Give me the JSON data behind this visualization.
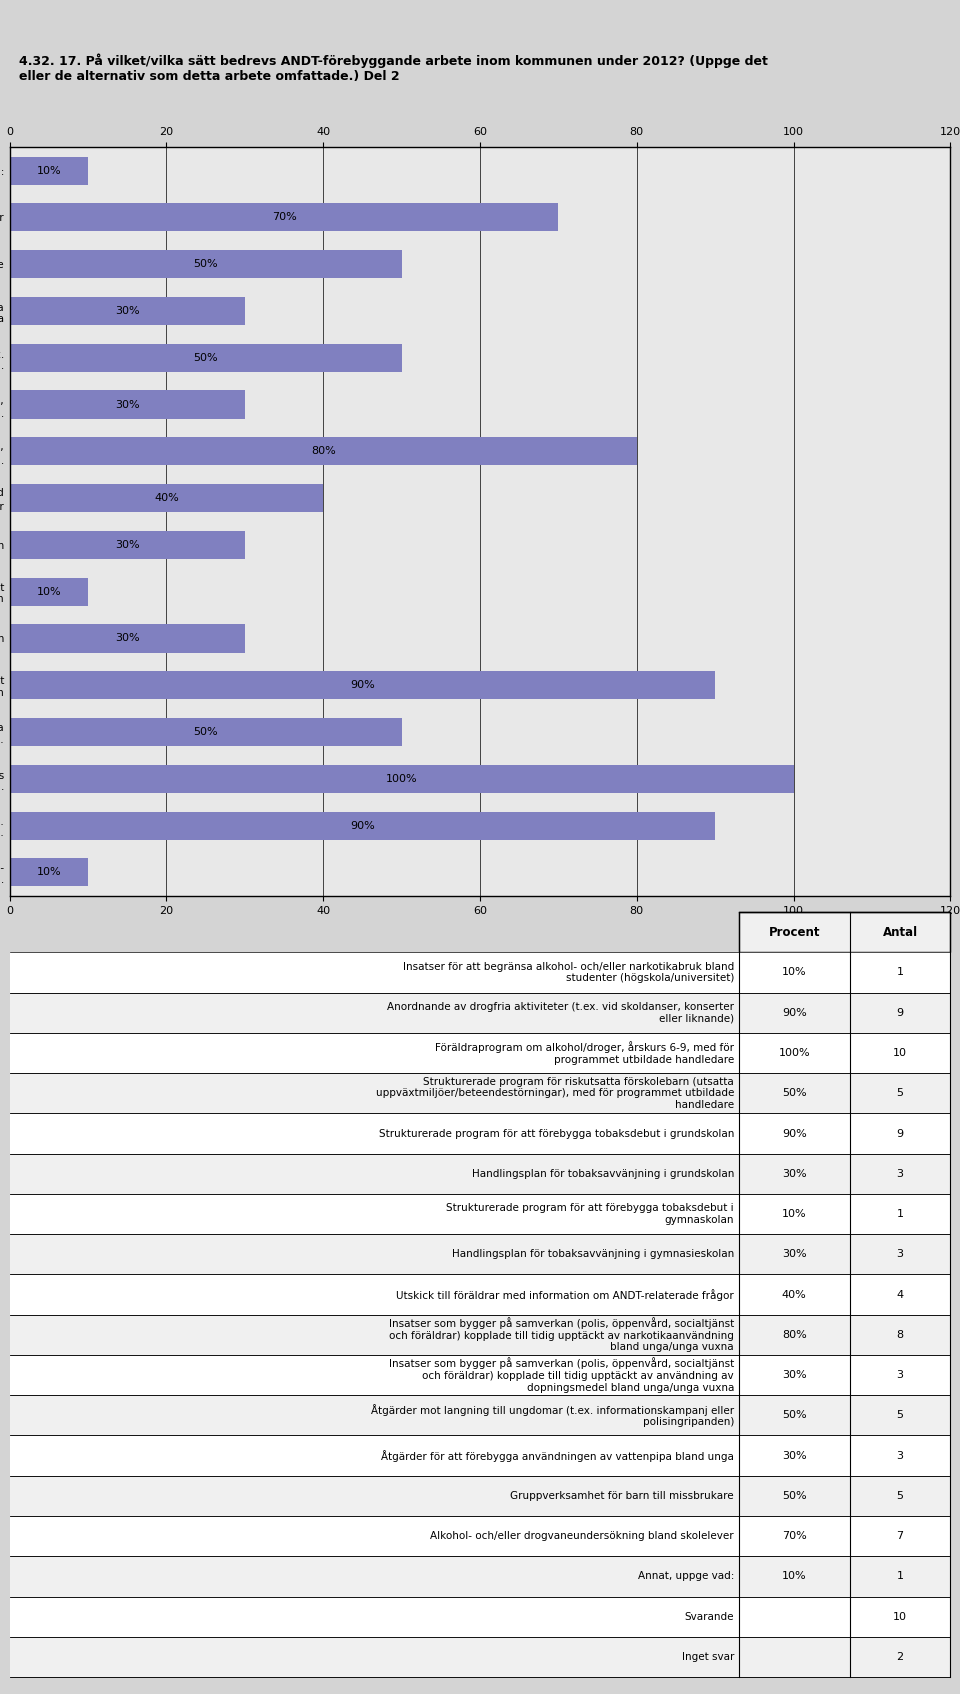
{
  "title": "4.32. 17. På vilket/vilka sätt bedrevs ANDT-förebyggande arbete inom kommunen under 2012? (Uppge det\neller de alternativ som detta arbete omfattade.) Del 2",
  "bar_labels": [
    "Insatser för att begränsa alkohol-\noch/eller narkotikabruk bland studenter ...",
    "Anordnande av drogfria aktiviteter (t.ex.\nvid skoldanser, konserter eller l...",
    "Föräldraprogram om alkohol/droger, årskurs\n6-9, med för programmet utbildad...",
    "Strukturerade program för riskutsatta\nförskolebarn (utsatta uppväxtmiljöer/...",
    "Strukturerade program för att\nförebygga tobaksdebut i grundskolan",
    "Handlingsplan för tobaksavvänjning i grundskolan",
    "Strukturerade program för att\nförebygga tobaksdebut i gymnasieskolan",
    "Handlingsplan för tobaksavvänjning i gymnasieskolan",
    "Utskick till föräldrar med\ninformation om ANDT-relaterade frågor",
    "Insatser som bygger på samverkan (polis,\nöppenvård, socialtjänst och föräld...",
    "Insatser som bygger på samverkan (polis,\nöppenvård, socialtjänst och föräld...",
    "Åtgärder mot langning till ungdomar (t.ex.\ninformationskampanjer eller polisi...",
    "Åtgärder för att förebygga\nanvändningen av vattenpipa bland unga",
    "Gruppverksamhet för barn till missbrukare",
    "Alkohol- och/eller drogvaneundersökning bland skolelever",
    "Annat, uppge vad:"
  ],
  "values": [
    10,
    90,
    100,
    50,
    90,
    30,
    10,
    30,
    40,
    80,
    30,
    50,
    30,
    50,
    70,
    10
  ],
  "bar_color": "#8080c0",
  "bg_color": "#d4d4d4",
  "chart_bg": "#e8e8e8",
  "xlim": [
    0,
    120
  ],
  "xticks": [
    0,
    20,
    40,
    60,
    80,
    100,
    120
  ],
  "table_labels": [
    "Insatser för att begränsa alkohol- och/eller narkotikabruk bland\nstudenter (högskola/universitet)",
    "Anordnande av drogfria aktiviteter (t.ex. vid skoldanser, konserter\neller liknande)",
    "Föräldraprogram om alkohol/droger, årskurs 6-9, med för\nprogrammet utbildade handledare",
    "Strukturerade program för riskutsatta förskolebarn (utsatta\nuppväxtmiljöer/beteendestörningar), med för programmet utbildade\nhandledare",
    "Strukturerade program för att förebygga tobaksdebut i grundskolan",
    "Handlingsplan för tobaksavvänjning i grundskolan",
    "Strukturerade program för att förebygga tobaksdebut i\ngymnaskolan",
    "Handlingsplan för tobaksavvänjning i gymnasieskolan",
    "Utskick till föräldrar med information om ANDT-relaterade frågor",
    "Insatser som bygger på samverkan (polis, öppenvård, socialtjänst\noch föräldrar) kopplade till tidig upptäckt av narkotikaanvändning\nbland unga/unga vuxna",
    "Insatser som bygger på samverkan (polis, öppenvård, socialtjänst\noch föräldrar) kopplade till tidig upptäckt av användning av\ndopningsmedel bland unga/unga vuxna",
    "Åtgärder mot langning till ungdomar (t.ex. informationskampanj eller\npolisingripanden)",
    "Åtgärder för att förebygga användningen av vattenpipa bland unga",
    "Gruppverksamhet för barn till missbrukare",
    "Alkohol- och/eller drogvaneundersökning bland skolelever",
    "Annat, uppge vad:",
    "Svarande",
    "Inget svar"
  ],
  "table_pct": [
    "10%",
    "90%",
    "100%",
    "50%",
    "90%",
    "30%",
    "10%",
    "30%",
    "40%",
    "80%",
    "30%",
    "50%",
    "30%",
    "50%",
    "70%",
    "10%",
    "",
    ""
  ],
  "table_antal": [
    "1",
    "9",
    "10",
    "5",
    "9",
    "3",
    "1",
    "3",
    "4",
    "8",
    "3",
    "5",
    "3",
    "5",
    "7",
    "1",
    "10",
    "2"
  ]
}
